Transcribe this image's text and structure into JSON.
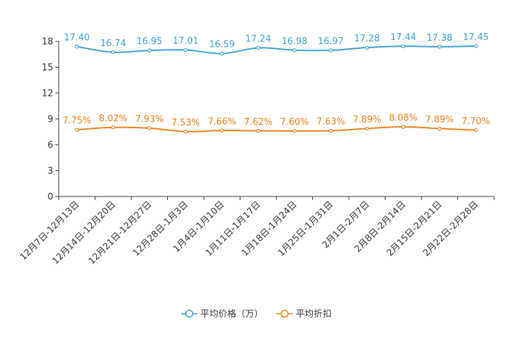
{
  "chart_data": {
    "type": "line",
    "title": "",
    "xlabel": "",
    "ylabel": "",
    "ylim": [
      0,
      18
    ],
    "yticks": [
      "0",
      "3",
      "6",
      "9",
      "12",
      "15",
      "18"
    ],
    "categories": [
      "12月7日-12月13日",
      "12月14日-12月20日",
      "12月21日-12月27日",
      "12月28日-1月3日",
      "1月4日-1月10日",
      "1月11日-1月17日",
      "1月18日-1月24日",
      "1月25日-1月31日",
      "2月1日-2月7日",
      "2月8日-2月14日",
      "2月15日-2月21日",
      "2月22日-2月28日"
    ],
    "series": [
      {
        "name": "平均价格（万）",
        "color": "#3d9fd3",
        "values": [
          17.4,
          16.74,
          16.95,
          17.01,
          16.59,
          17.24,
          16.98,
          16.97,
          17.28,
          17.44,
          17.38,
          17.45
        ],
        "labels": [
          "17.40",
          "16.74",
          "16.95",
          "17.01",
          "16.59",
          "17.24",
          "16.98",
          "16.97",
          "17.28",
          "17.44",
          "17.38",
          "17.45"
        ]
      },
      {
        "name": "平均折扣",
        "color": "#f07f1a",
        "values": [
          7.75,
          8.02,
          7.93,
          7.53,
          7.66,
          7.62,
          7.6,
          7.63,
          7.89,
          8.08,
          7.89,
          7.7
        ],
        "labels": [
          "7.75%",
          "8.02%",
          "7.93%",
          "7.53%",
          "7.66%",
          "7.62%",
          "7.60%",
          "7.63%",
          "7.89%",
          "8.08%",
          "7.89%",
          "7.70%"
        ]
      }
    ],
    "legend": "bottom-center"
  }
}
